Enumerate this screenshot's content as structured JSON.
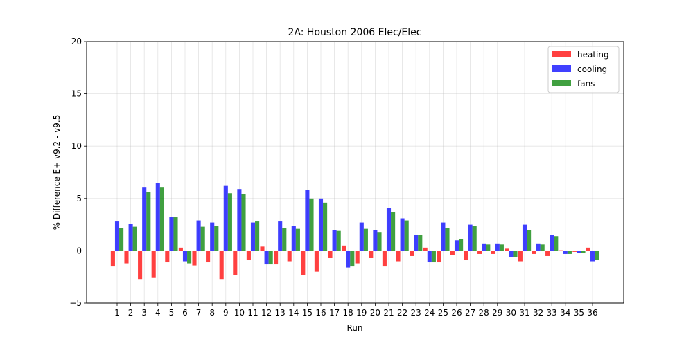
{
  "chart_data": {
    "type": "bar",
    "title": "2A: Houston 2006 Elec/Elec",
    "xlabel": "Run",
    "ylabel": "% Difference E+ v9.2 - v9.5",
    "ylim": [
      -5,
      20
    ],
    "yticks": [
      -5,
      0,
      5,
      10,
      15,
      20
    ],
    "grid": true,
    "legend_position": "top-right",
    "categories": [
      "1",
      "2",
      "3",
      "4",
      "5",
      "6",
      "7",
      "8",
      "9",
      "10",
      "11",
      "12",
      "13",
      "14",
      "15",
      "16",
      "17",
      "18",
      "19",
      "20",
      "21",
      "22",
      "23",
      "24",
      "25",
      "26",
      "27",
      "28",
      "29",
      "30",
      "31",
      "32",
      "33",
      "34",
      "35",
      "36"
    ],
    "series": [
      {
        "name": "heating",
        "color": "#ff0000",
        "values": [
          -1.5,
          -1.2,
          -2.7,
          -2.6,
          -1.1,
          0.3,
          -1.4,
          -1.1,
          -2.7,
          -2.3,
          -0.9,
          0.4,
          -1.3,
          -1.0,
          -2.3,
          -2.0,
          -0.7,
          0.5,
          -1.2,
          -0.7,
          -1.5,
          -1.0,
          -0.5,
          0.3,
          -1.1,
          -0.4,
          -0.9,
          -0.3,
          -0.3,
          0.2,
          -1.0,
          -0.3,
          -0.5,
          0.05,
          -0.1,
          0.3
        ]
      },
      {
        "name": "cooling",
        "color": "#0000ff",
        "values": [
          2.8,
          2.6,
          6.1,
          6.5,
          3.2,
          -1.0,
          2.9,
          2.7,
          6.2,
          5.9,
          2.7,
          -1.3,
          2.8,
          2.4,
          5.8,
          5.0,
          2.0,
          -1.6,
          2.7,
          2.0,
          4.1,
          3.1,
          1.5,
          -1.1,
          2.7,
          1.0,
          2.5,
          0.7,
          0.7,
          -0.6,
          2.5,
          0.7,
          1.5,
          -0.3,
          -0.2,
          -1.0
        ]
      },
      {
        "name": "fans",
        "color": "#008000",
        "values": [
          2.2,
          2.3,
          5.6,
          6.1,
          3.2,
          -1.2,
          2.3,
          2.4,
          5.5,
          5.4,
          2.8,
          -1.3,
          2.2,
          2.1,
          5.0,
          4.6,
          1.9,
          -1.5,
          2.1,
          1.8,
          3.7,
          2.9,
          1.5,
          -1.1,
          2.2,
          1.1,
          2.4,
          0.6,
          0.6,
          -0.6,
          2.0,
          0.6,
          1.4,
          -0.3,
          -0.2,
          -0.9
        ]
      }
    ]
  }
}
